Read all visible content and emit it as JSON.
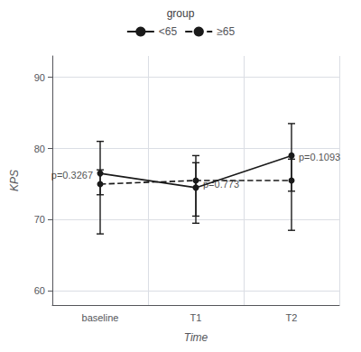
{
  "chart_data": {
    "type": "line",
    "xlabel": "Time",
    "ylabel": "KPS",
    "legend_title": "group",
    "categories": [
      "baseline",
      "T1",
      "T2"
    ],
    "series": [
      {
        "name": "<65",
        "color": "#1a1a1a",
        "line_style": "solid",
        "marker": "circle",
        "values": [
          76.5,
          74.5,
          79.0
        ],
        "ci_lower": [
          73.5,
          70.5,
          74.0
        ],
        "ci_upper": [
          81.0,
          78.0,
          83.5
        ]
      },
      {
        "name": "≥65",
        "color": "#1a1a1a",
        "line_style": "dashed",
        "marker": "circle",
        "values": [
          75.0,
          75.5,
          75.5
        ],
        "ci_lower": [
          68.0,
          69.5,
          68.5
        ],
        "ci_upper": [
          77.0,
          79.0,
          78.5
        ]
      }
    ],
    "annotations": [
      {
        "text": "p=0.3267",
        "x": "baseline",
        "y": 76.2
      },
      {
        "text": "p=0.773",
        "x": "T1",
        "y": 75.0
      },
      {
        "text": "p=0.1093",
        "x": "T2",
        "y": 78.8
      }
    ],
    "ylim": [
      58,
      93
    ],
    "yticks": [
      60,
      70,
      80,
      90
    ],
    "grid": true,
    "legend": "top"
  }
}
